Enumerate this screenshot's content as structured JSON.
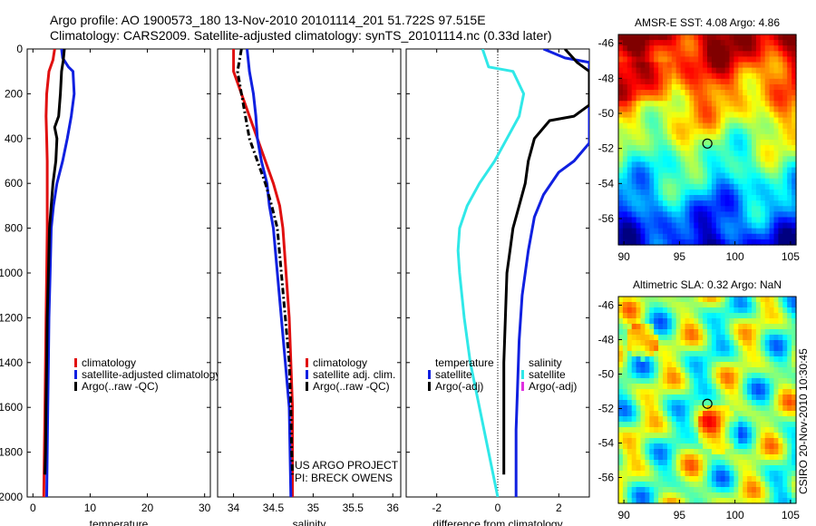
{
  "header": {
    "line1": "Argo profile: AO 1900573_180 13-Nov-2010 20101114_201 51.722S 97.515E",
    "line2": "Climatology: CARS2009. Satellite-adjusted climatology: synTS_20101114.nc (0.33d later)"
  },
  "side_label": "CSIRO 20-Nov-2010 10:30:45",
  "credits": {
    "line1": "US ARGO PROJECT",
    "line2": "PI: BRECK OWENS"
  },
  "colors": {
    "red": "#e01010",
    "blue": "#1020e0",
    "black": "#000000",
    "cyan": "#30e8e8",
    "magenta": "#e030e0"
  },
  "chart_data": [
    {
      "type": "line",
      "xlabel": "temperature",
      "xlim": [
        -1,
        31
      ],
      "ylim": [
        2000,
        0
      ],
      "xticks": [
        "0",
        "10",
        "20",
        "30"
      ],
      "yticks": [
        "0",
        "200",
        "400",
        "600",
        "800",
        "1000",
        "1200",
        "1400",
        "1600",
        "1800",
        "2000"
      ],
      "legend": [
        "climatology",
        "satellite-adjusted climatology",
        "Argo(..raw -QC)"
      ],
      "series": [
        {
          "name": "climatology",
          "color": "#e01010",
          "style": "solid",
          "points": [
            [
              3.8,
              0
            ],
            [
              3.5,
              50
            ],
            [
              2.8,
              100
            ],
            [
              2.4,
              200
            ],
            [
              2.3,
              300
            ],
            [
              2.4,
              400
            ],
            [
              2.5,
              500
            ],
            [
              2.5,
              600
            ],
            [
              2.5,
              800
            ],
            [
              2.4,
              1000
            ],
            [
              2.3,
              1200
            ],
            [
              2.2,
              1400
            ],
            [
              2.1,
              1600
            ],
            [
              2.0,
              1800
            ],
            [
              1.9,
              2000
            ]
          ]
        },
        {
          "name": "satellite-adjusted climatology",
          "color": "#1020e0",
          "style": "solid",
          "points": [
            [
              5.0,
              0
            ],
            [
              5.2,
              40
            ],
            [
              6.2,
              80
            ],
            [
              7.0,
              100
            ],
            [
              7.2,
              200
            ],
            [
              6.7,
              300
            ],
            [
              6.0,
              400
            ],
            [
              5.2,
              500
            ],
            [
              4.2,
              600
            ],
            [
              3.6,
              700
            ],
            [
              3.2,
              800
            ],
            [
              3.0,
              1000
            ],
            [
              2.8,
              1200
            ],
            [
              2.7,
              1400
            ],
            [
              2.6,
              1600
            ],
            [
              2.5,
              1800
            ],
            [
              2.4,
              2000
            ]
          ]
        },
        {
          "name": "Argo(..raw -QC)",
          "color": "#000000",
          "style": "solid",
          "points": [
            [
              5.5,
              0
            ],
            [
              5.3,
              50
            ],
            [
              5.0,
              100
            ],
            [
              4.8,
              200
            ],
            [
              4.5,
              300
            ],
            [
              3.8,
              350
            ],
            [
              4.2,
              400
            ],
            [
              4.0,
              500
            ],
            [
              3.5,
              600
            ],
            [
              3.2,
              700
            ],
            [
              2.9,
              800
            ],
            [
              2.7,
              1000
            ],
            [
              2.5,
              1200
            ],
            [
              2.4,
              1400
            ],
            [
              2.3,
              1600
            ],
            [
              2.2,
              1800
            ],
            [
              2.1,
              1900
            ]
          ]
        }
      ]
    },
    {
      "type": "line",
      "xlabel": "salinity",
      "xlim": [
        33.8,
        36.1
      ],
      "ylim": [
        2000,
        0
      ],
      "xticks": [
        "34",
        "34.5",
        "35",
        "35.5",
        "36"
      ],
      "legend": [
        "climatology",
        "satellite adj. clim.",
        "Argo(..raw -QC)"
      ],
      "series": [
        {
          "name": "climatology",
          "color": "#e01010",
          "style": "solid",
          "points": [
            [
              34.0,
              0
            ],
            [
              34.0,
              100
            ],
            [
              34.1,
              200
            ],
            [
              34.2,
              300
            ],
            [
              34.3,
              400
            ],
            [
              34.4,
              500
            ],
            [
              34.5,
              600
            ],
            [
              34.58,
              700
            ],
            [
              34.62,
              800
            ],
            [
              34.66,
              1000
            ],
            [
              34.7,
              1200
            ],
            [
              34.72,
              1400
            ],
            [
              34.74,
              1600
            ],
            [
              34.74,
              1800
            ],
            [
              34.74,
              2000
            ]
          ]
        },
        {
          "name": "satellite adj. clim.",
          "color": "#1020e0",
          "style": "solid",
          "points": [
            [
              34.17,
              0
            ],
            [
              34.2,
              100
            ],
            [
              34.25,
              200
            ],
            [
              34.28,
              300
            ],
            [
              34.3,
              400
            ],
            [
              34.35,
              500
            ],
            [
              34.42,
              600
            ],
            [
              34.45,
              700
            ],
            [
              34.5,
              800
            ],
            [
              34.55,
              1000
            ],
            [
              34.6,
              1200
            ],
            [
              34.65,
              1400
            ],
            [
              34.7,
              1600
            ],
            [
              34.71,
              1800
            ],
            [
              34.72,
              2000
            ]
          ]
        },
        {
          "name": "Argo(..raw -QC)",
          "color": "#000000",
          "style": "dashdot",
          "points": [
            [
              34.1,
              0
            ],
            [
              34.05,
              100
            ],
            [
              34.1,
              200
            ],
            [
              34.15,
              300
            ],
            [
              34.2,
              400
            ],
            [
              34.3,
              500
            ],
            [
              34.4,
              600
            ],
            [
              34.48,
              700
            ],
            [
              34.55,
              800
            ],
            [
              34.6,
              1000
            ],
            [
              34.65,
              1200
            ],
            [
              34.7,
              1400
            ],
            [
              34.72,
              1600
            ],
            [
              34.73,
              1800
            ],
            [
              34.74,
              1900
            ]
          ]
        }
      ]
    },
    {
      "type": "line",
      "xlabel": "difference from climatology",
      "xlim": [
        -3,
        3
      ],
      "ylim": [
        2000,
        0
      ],
      "xticks": [
        "-2",
        "0",
        "2"
      ],
      "legend_groups": [
        {
          "title": "temperature",
          "items": [
            "satellite",
            "Argo(-adj)"
          ]
        },
        {
          "title": "salinity",
          "items": [
            "satellite",
            "Argo(-adj)"
          ]
        }
      ],
      "series": [
        {
          "name": "temperature satellite",
          "color": "#1020e0",
          "style": "solid",
          "points": [
            [
              1.5,
              0
            ],
            [
              2.2,
              40
            ],
            [
              3.0,
              60
            ],
            [
              3.0,
              420
            ],
            [
              2.5,
              500
            ],
            [
              2.0,
              550
            ],
            [
              1.5,
              650
            ],
            [
              1.2,
              750
            ],
            [
              1.0,
              900
            ],
            [
              0.8,
              1100
            ],
            [
              0.7,
              1300
            ],
            [
              0.65,
              1500
            ],
            [
              0.6,
              1700
            ],
            [
              0.6,
              1900
            ],
            [
              0.6,
              2000
            ]
          ]
        },
        {
          "name": "temperature Argo(-adj)",
          "color": "#000000",
          "style": "solid",
          "points": [
            [
              2.2,
              0
            ],
            [
              2.6,
              60
            ],
            [
              3.0,
              100
            ],
            [
              3.0,
              250
            ],
            [
              2.5,
              300
            ],
            [
              1.7,
              320
            ],
            [
              1.2,
              400
            ],
            [
              1.0,
              500
            ],
            [
              0.9,
              600
            ],
            [
              0.7,
              700
            ],
            [
              0.5,
              800
            ],
            [
              0.4,
              900
            ],
            [
              0.3,
              1000
            ],
            [
              0.25,
              1200
            ],
            [
              0.2,
              1400
            ],
            [
              0.2,
              1600
            ],
            [
              0.2,
              1800
            ],
            [
              0.2,
              1900
            ]
          ]
        },
        {
          "name": "salinity satellite",
          "color": "#30e8e8",
          "style": "solid",
          "points": [
            [
              -0.5,
              0
            ],
            [
              -0.3,
              80
            ],
            [
              0.5,
              100
            ],
            [
              0.85,
              200
            ],
            [
              0.7,
              300
            ],
            [
              0.3,
              400
            ],
            [
              -0.1,
              500
            ],
            [
              -0.6,
              600
            ],
            [
              -1.0,
              700
            ],
            [
              -1.25,
              800
            ],
            [
              -1.3,
              900
            ],
            [
              -1.25,
              1000
            ],
            [
              -1.1,
              1200
            ],
            [
              -0.9,
              1400
            ],
            [
              -0.6,
              1600
            ],
            [
              -0.3,
              1800
            ],
            [
              0.0,
              2000
            ]
          ]
        }
      ]
    },
    {
      "type": "heatmap",
      "title": "AMSR-E SST: 4.08 Argo: 4.86",
      "xlim": [
        89.5,
        105.5
      ],
      "ylim": [
        -57.5,
        -45.5
      ],
      "xticks": [
        "90",
        "95",
        "100",
        "105"
      ],
      "yticks": [
        "-46",
        "-48",
        "-50",
        "-52",
        "-54",
        "-56"
      ],
      "marker": {
        "lon": 97.515,
        "lat": -51.722
      }
    },
    {
      "type": "heatmap",
      "title": "Altimetric SLA: 0.32 Argo: NaN",
      "xlim": [
        89.5,
        105.5
      ],
      "ylim": [
        -57.5,
        -45.5
      ],
      "xticks": [
        "90",
        "95",
        "100",
        "105"
      ],
      "yticks": [
        "-46",
        "-48",
        "-50",
        "-52",
        "-54",
        "-56"
      ],
      "marker": {
        "lon": 97.515,
        "lat": -51.722
      }
    }
  ]
}
